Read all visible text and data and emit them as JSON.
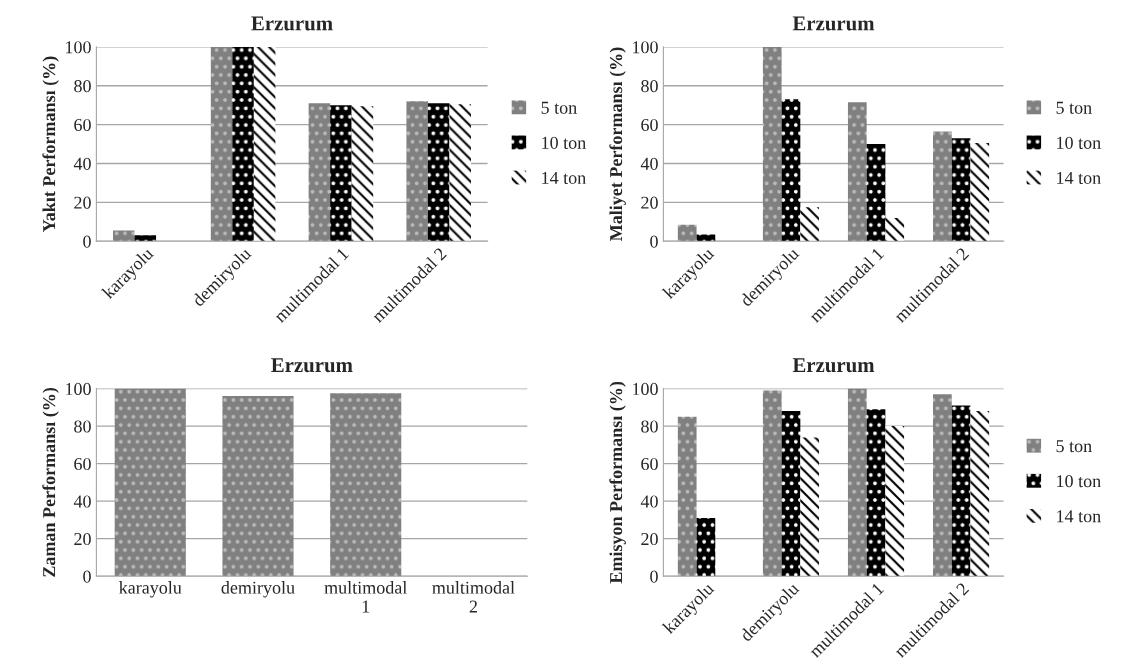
{
  "chart_data": [
    {
      "type": "bar",
      "title": "Erzurum",
      "ylabel": "Yakıt Performansı (%)",
      "categories": [
        "karayolu",
        "demiryolu",
        "multimodal 1",
        "multimodal 2"
      ],
      "ylim": [
        0,
        100
      ],
      "yticks": [
        0,
        20,
        40,
        60,
        80,
        100
      ],
      "grid": "y",
      "legend": "right",
      "series": [
        {
          "name": "5 ton",
          "color": "#808080",
          "values": [
            5.5,
            100,
            71,
            72
          ]
        },
        {
          "name": "10 ton",
          "color": "#000000",
          "values": [
            3,
            100,
            70,
            71
          ]
        },
        {
          "name": "14 ton",
          "color": "#000000",
          "values": [
            0,
            100,
            69.5,
            70.5
          ]
        }
      ]
    },
    {
      "type": "bar",
      "title": "Erzurum",
      "ylabel": "Maliyet Performansı (%)",
      "categories": [
        "karayolu",
        "demiryolu",
        "multimodal 1",
        "multimodal 2"
      ],
      "ylim": [
        0,
        100
      ],
      "yticks": [
        0,
        20,
        40,
        60,
        80,
        100
      ],
      "grid": "y",
      "legend": "right",
      "series": [
        {
          "name": "5 ton",
          "color": "#808080",
          "values": [
            8.5,
            100,
            71.5,
            56.5
          ]
        },
        {
          "name": "10 ton",
          "color": "#000000",
          "values": [
            3.5,
            73,
            50,
            53
          ]
        },
        {
          "name": "14 ton",
          "color": "#000000",
          "values": [
            0,
            17.5,
            12,
            50.5
          ]
        }
      ]
    },
    {
      "type": "bar",
      "title": "Erzurum",
      "ylabel": "Zaman Performansı (%)",
      "categories": [
        "karayolu",
        "demiryolu",
        "multimodal\n1",
        "multimodal\n2"
      ],
      "ylim": [
        0,
        100
      ],
      "yticks": [
        0,
        20,
        40,
        60,
        80,
        100
      ],
      "grid": "y",
      "series": [
        {
          "color": "#808080",
          "values": [
            100,
            96,
            97.5,
            null
          ]
        }
      ]
    },
    {
      "type": "bar",
      "title": "Erzurum",
      "ylabel": "Emisyon Performansı (%)",
      "categories": [
        "karayolu",
        "demiryolu",
        "multimodal 1",
        "multimodal 2"
      ],
      "ylim": [
        0,
        100
      ],
      "yticks": [
        0,
        20,
        40,
        60,
        80,
        100
      ],
      "grid": "y",
      "legend": "right",
      "series": [
        {
          "name": "5 ton",
          "color": "#808080",
          "values": [
            85,
            99,
            100,
            97
          ]
        },
        {
          "name": "10 ton",
          "color": "#000000",
          "values": [
            31,
            88,
            89,
            91
          ]
        },
        {
          "name": "14 ton",
          "color": "#000000",
          "values": [
            0,
            74,
            80,
            88
          ]
        }
      ]
    }
  ]
}
